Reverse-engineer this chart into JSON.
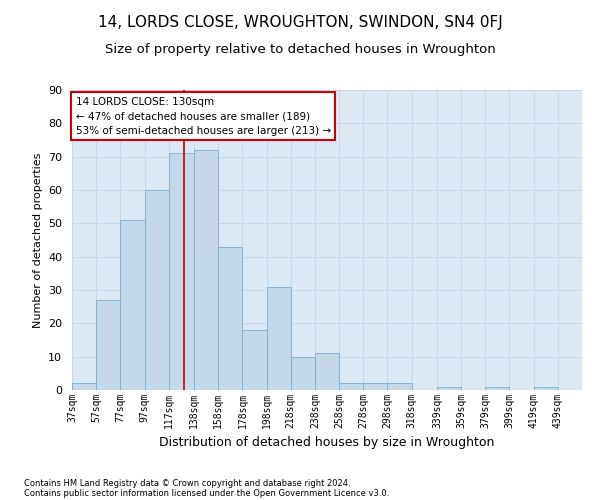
{
  "title": "14, LORDS CLOSE, WROUGHTON, SWINDON, SN4 0FJ",
  "subtitle": "Size of property relative to detached houses in Wroughton",
  "xlabel": "Distribution of detached houses by size in Wroughton",
  "ylabel": "Number of detached properties",
  "footnote1": "Contains HM Land Registry data © Crown copyright and database right 2024.",
  "footnote2": "Contains public sector information licensed under the Open Government Licence v3.0.",
  "annotation_line1": "14 LORDS CLOSE: 130sqm",
  "annotation_line2": "← 47% of detached houses are smaller (189)",
  "annotation_line3": "53% of semi-detached houses are larger (213) →",
  "property_size": 130,
  "bar_left_edges": [
    37,
    57,
    77,
    97,
    117,
    138,
    158,
    178,
    198,
    218,
    238,
    258,
    278,
    298,
    318,
    339,
    359,
    379,
    399,
    419
  ],
  "bar_widths": [
    20,
    20,
    20,
    20,
    21,
    20,
    20,
    20,
    20,
    20,
    20,
    20,
    20,
    20,
    21,
    20,
    20,
    20,
    20,
    20
  ],
  "bar_heights": [
    2,
    27,
    51,
    60,
    71,
    72,
    43,
    18,
    31,
    10,
    11,
    2,
    2,
    2,
    0,
    1,
    0,
    1,
    0,
    1
  ],
  "bar_color": "#c5d8e8",
  "bar_edge_color": "#7aafd4",
  "vline_color": "#cc0000",
  "vline_x": 130,
  "ylim": [
    0,
    90
  ],
  "yticks": [
    0,
    10,
    20,
    30,
    40,
    50,
    60,
    70,
    80,
    90
  ],
  "grid_color": "#c8d8e8",
  "bg_color": "#dce8f4",
  "annotation_box_color": "#cc0000",
  "title_fontsize": 11,
  "subtitle_fontsize": 9.5,
  "tick_labels": [
    "37sqm",
    "57sqm",
    "77sqm",
    "97sqm",
    "117sqm",
    "138sqm",
    "158sqm",
    "178sqm",
    "198sqm",
    "218sqm",
    "238sqm",
    "258sqm",
    "278sqm",
    "298sqm",
    "318sqm",
    "339sqm",
    "359sqm",
    "379sqm",
    "399sqm",
    "419sqm",
    "439sqm"
  ]
}
